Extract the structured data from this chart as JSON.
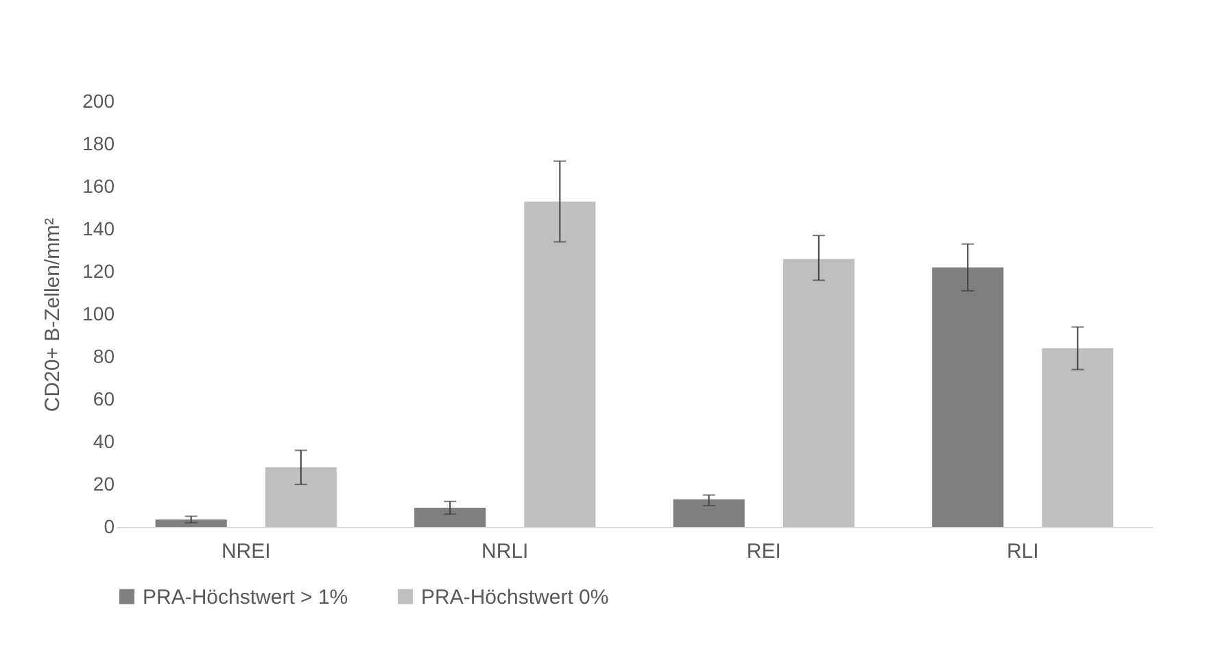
{
  "chart_data": {
    "type": "bar",
    "ylabel": "CD20+ B-Zellen/mm²",
    "categories": [
      "NREI",
      "NRLI",
      "REI",
      "RLI"
    ],
    "series": [
      {
        "name": "PRA-Höchstwert  > 1%",
        "color": "#7f7f7f",
        "values": [
          3.5,
          9,
          13,
          122
        ],
        "errors": [
          [
            2,
            5
          ],
          [
            6,
            12
          ],
          [
            10,
            15
          ],
          [
            111,
            133
          ]
        ]
      },
      {
        "name": "PRA-Höchstwert 0%",
        "color": "#bfbfbf",
        "values": [
          28,
          153,
          126,
          84
        ],
        "errors": [
          [
            20,
            36
          ],
          [
            134,
            172
          ],
          [
            116,
            137
          ],
          [
            74,
            94
          ]
        ]
      }
    ],
    "ylim": [
      0,
      200
    ],
    "yticks": [
      0,
      20,
      40,
      60,
      80,
      100,
      120,
      140,
      160,
      180,
      200
    ],
    "grid": false,
    "legend": "bottom"
  }
}
